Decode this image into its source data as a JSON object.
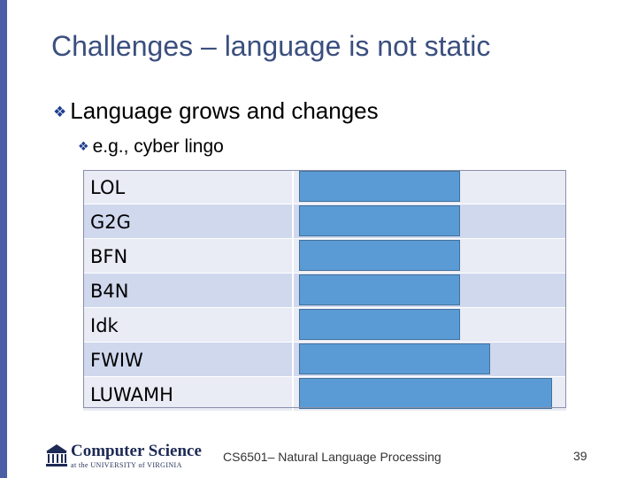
{
  "slide": {
    "title": "Challenges – language is not static",
    "bullet1": "Language grows and changes",
    "bullet2": "e.g., cyber lingo"
  },
  "table": {
    "rows": [
      {
        "term": "LOL",
        "cover_fraction": 0.59
      },
      {
        "term": "G2G",
        "cover_fraction": 0.59
      },
      {
        "term": "BFN",
        "cover_fraction": 0.59
      },
      {
        "term": "B4N",
        "cover_fraction": 0.59
      },
      {
        "term": "Idk",
        "cover_fraction": 0.59
      },
      {
        "term": "FWIW",
        "cover_fraction": 0.7
      },
      {
        "term": "LUWAMH",
        "cover_fraction": 0.93
      }
    ]
  },
  "footer": {
    "logo_main": "Computer Science",
    "logo_sub": "at the UNIVERSITY of VIRGINIA",
    "course": "CS6501– Natural Language Processing",
    "page_number": "39"
  },
  "colors": {
    "title": "#3b4f7f",
    "left_bar": "#4a5fa5",
    "cover_box": "#5b9bd5",
    "row_light": "#e9ebf5",
    "row_dark": "#d0d8ee",
    "bullet_icon": "#1f3f8f"
  },
  "icons": {
    "bullet": "diamond-cluster-icon",
    "logo": "rotunda-icon"
  }
}
